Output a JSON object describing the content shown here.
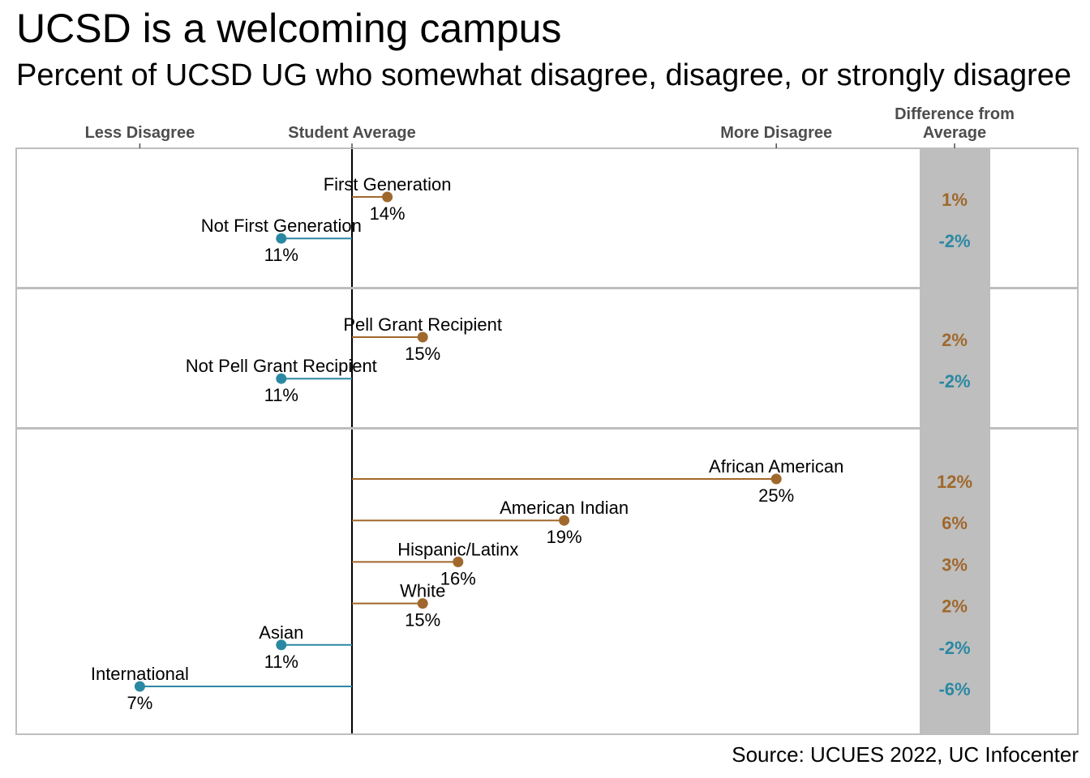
{
  "title": "UCSD is a welcoming campus",
  "subtitle": "Percent of UCSD UG who somewhat disagree, disagree, or strongly disagree",
  "source": "Source: UCUES 2022, UC Infocenter",
  "colors": {
    "above": "#A0682D",
    "below": "#2B88A2",
    "panel_border": "#BEBEBE",
    "diff_band": "#BEBEBE",
    "axis_text": "#4D4D4D"
  },
  "chart_data": {
    "type": "lollipop",
    "student_average": 13,
    "xlim": [
      0,
      27
    ],
    "x_axis_labels": [
      {
        "text": "Less Disagree",
        "value": 7
      },
      {
        "text": "Student Average",
        "value": 13
      },
      {
        "text": "More Disagree",
        "value": 25
      }
    ],
    "diff_header": [
      "Difference from",
      "Average"
    ],
    "groups": [
      {
        "items": [
          {
            "label": "First Generation",
            "value": 14,
            "value_label": "14%",
            "diff": "1%"
          },
          {
            "label": "Not First Generation",
            "value": 11,
            "value_label": "11%",
            "diff": "-2%"
          }
        ]
      },
      {
        "items": [
          {
            "label": "Pell Grant Recipient",
            "value": 15,
            "value_label": "15%",
            "diff": "2%"
          },
          {
            "label": "Not Pell Grant Recipient",
            "value": 11,
            "value_label": "11%",
            "diff": "-2%"
          }
        ]
      },
      {
        "items": [
          {
            "label": "African American",
            "value": 25,
            "value_label": "25%",
            "diff": "12%"
          },
          {
            "label": "American Indian",
            "value": 19,
            "value_label": "19%",
            "diff": "6%"
          },
          {
            "label": "Hispanic/Latinx",
            "value": 16,
            "value_label": "16%",
            "diff": "3%"
          },
          {
            "label": "White",
            "value": 15,
            "value_label": "15%",
            "diff": "2%"
          },
          {
            "label": "Asian",
            "value": 11,
            "value_label": "11%",
            "diff": "-2%"
          },
          {
            "label": "International",
            "value": 7,
            "value_label": "7%",
            "diff": "-6%"
          }
        ]
      }
    ]
  }
}
